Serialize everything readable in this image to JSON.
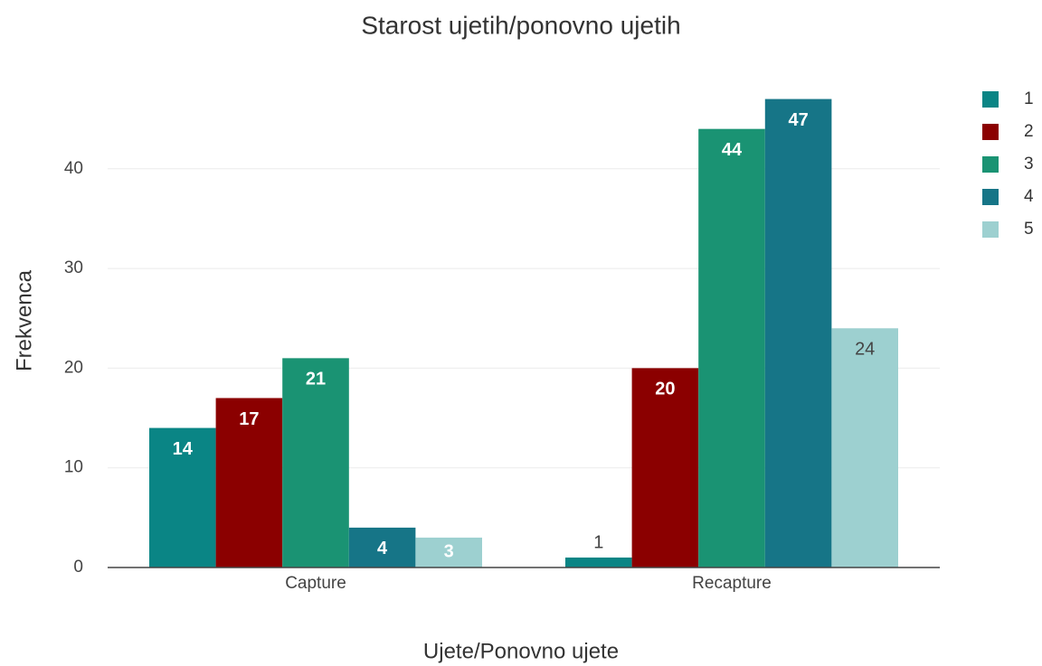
{
  "chart_data": {
    "type": "bar",
    "title": "Starost ujetih/ponovno ujetih",
    "x_label": "Ujete/Ponovno ujete",
    "y_label": "Frekvenca",
    "categories": [
      "Capture",
      "Recapture"
    ],
    "series": [
      {
        "name": "1",
        "color": "#0a8585",
        "values": [
          14,
          1
        ]
      },
      {
        "name": "2",
        "color": "#8b0000",
        "values": [
          17,
          20
        ]
      },
      {
        "name": "3",
        "color": "#1a9373",
        "values": [
          21,
          44
        ]
      },
      {
        "name": "4",
        "color": "#167587",
        "values": [
          4,
          47
        ]
      },
      {
        "name": "5",
        "color": "#9dd0d0",
        "values": [
          3,
          24
        ]
      }
    ],
    "ylim": [
      0,
      49.5
    ],
    "yticks": [
      0,
      10,
      20,
      30,
      40
    ],
    "grid": true,
    "legend": "right"
  }
}
